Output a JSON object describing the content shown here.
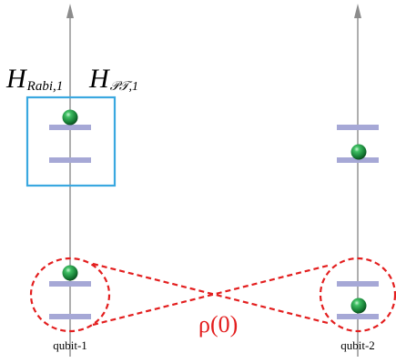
{
  "labels": {
    "h_rabi": "H",
    "h_rabi_sub": "Rabi,1",
    "h_pt": "H",
    "h_pt_sub": "𝒫𝒯,1",
    "rho": "ρ(0)",
    "qubit1": "qubit-1",
    "qubit2": "qubit-2"
  },
  "colors": {
    "axis": "#8c8c8c",
    "level": "#a6a8d6",
    "ball": "#1e8a3c",
    "box": "#3aa8e0",
    "entangle": "#e31e1e"
  },
  "qubits": [
    {
      "name": "qubit-1",
      "upper_pair": {
        "ball_on": "top"
      },
      "lower_pair": {
        "ball_on": "top"
      }
    },
    {
      "name": "qubit-2",
      "upper_pair": {
        "ball_on": "bottom"
      },
      "lower_pair": {
        "ball_on": "bottom"
      }
    }
  ]
}
